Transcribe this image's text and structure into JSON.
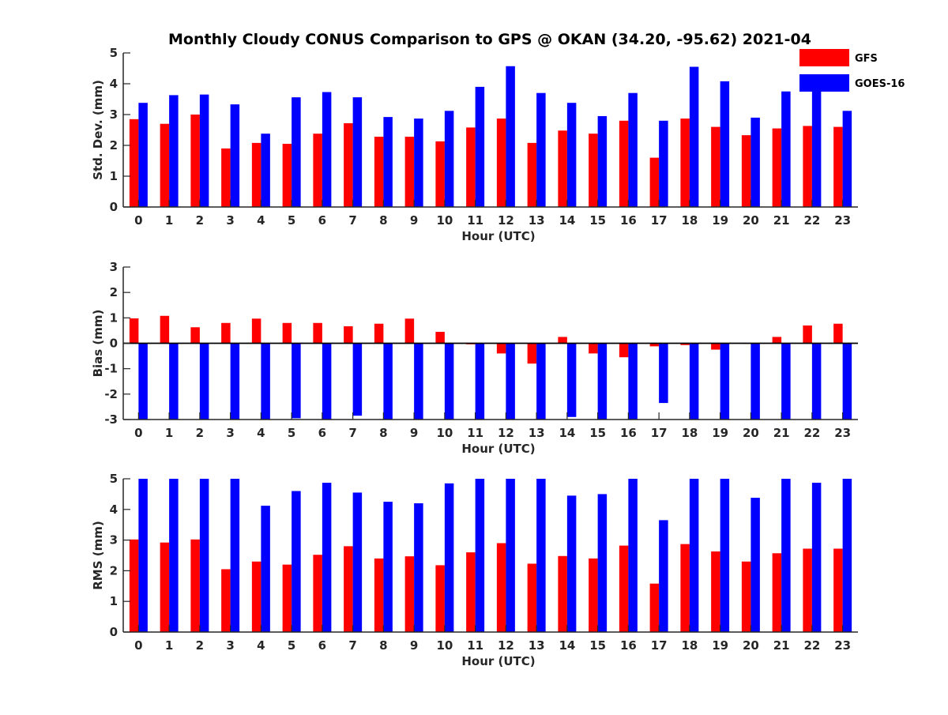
{
  "colors": {
    "gfs": "#ff0000",
    "goes": "#0000ff",
    "axis": "#262626"
  },
  "chart_data": [
    {
      "type": "bar",
      "title": "Monthly Cloudy CONUS Comparison to GPS @ OKAN (34.20, -95.62) 2021-04",
      "xlabel": "Hour (UTC)",
      "ylabel": "Std. Dev. (mm)",
      "ylim": [
        0,
        5
      ],
      "yticks": [
        "0",
        "1",
        "2",
        "3",
        "4",
        "5"
      ],
      "categories": [
        "0",
        "1",
        "2",
        "3",
        "4",
        "5",
        "6",
        "7",
        "8",
        "9",
        "10",
        "11",
        "12",
        "13",
        "14",
        "15",
        "16",
        "17",
        "18",
        "19",
        "20",
        "21",
        "22",
        "23"
      ],
      "legend": {
        "placement": "top-right"
      },
      "series": [
        {
          "name": "GFS",
          "values": [
            2.85,
            2.7,
            3.0,
            1.9,
            2.08,
            2.05,
            2.38,
            2.72,
            2.28,
            2.28,
            2.13,
            2.58,
            2.87,
            2.08,
            2.48,
            2.38,
            2.8,
            1.6,
            2.87,
            2.6,
            2.33,
            2.55,
            2.63,
            2.6
          ]
        },
        {
          "name": "GOES-16",
          "values": [
            3.38,
            3.63,
            3.65,
            3.33,
            2.38,
            3.56,
            3.73,
            3.56,
            2.92,
            2.87,
            3.12,
            3.9,
            4.57,
            3.7,
            3.38,
            2.95,
            3.7,
            2.8,
            4.55,
            4.08,
            2.9,
            3.75,
            3.8,
            3.12
          ]
        }
      ]
    },
    {
      "type": "bar",
      "xlabel": "Hour (UTC)",
      "ylabel": "Bias (mm)",
      "ylim": [
        -3,
        3
      ],
      "yticks": [
        "-3",
        "-2",
        "-1",
        "0",
        "1",
        "2",
        "3"
      ],
      "categories": [
        "0",
        "1",
        "2",
        "3",
        "4",
        "5",
        "6",
        "7",
        "8",
        "9",
        "10",
        "11",
        "12",
        "13",
        "14",
        "15",
        "16",
        "17",
        "18",
        "19",
        "20",
        "21",
        "22",
        "23"
      ],
      "series": [
        {
          "name": "GFS",
          "values": [
            0.98,
            1.08,
            0.63,
            0.8,
            0.97,
            0.8,
            0.8,
            0.67,
            0.77,
            0.97,
            0.45,
            -0.04,
            -0.4,
            -0.8,
            0.25,
            -0.4,
            -0.55,
            -0.12,
            -0.07,
            -0.25,
            0.0,
            0.25,
            0.7,
            0.77
          ]
        },
        {
          "name": "GOES-16",
          "values": [
            -3.0,
            -3.0,
            -3.0,
            -3.0,
            -3.0,
            -2.95,
            -3.0,
            -2.85,
            -3.0,
            -3.0,
            -3.0,
            -3.0,
            -3.0,
            -3.0,
            -2.9,
            -3.0,
            -3.0,
            -2.35,
            -3.0,
            -3.0,
            -3.0,
            -3.0,
            -3.0,
            -3.0
          ]
        }
      ]
    },
    {
      "type": "bar",
      "xlabel": "Hour (UTC)",
      "ylabel": "RMS (mm)",
      "ylim": [
        0,
        5
      ],
      "yticks": [
        "0",
        "1",
        "2",
        "3",
        "4",
        "5"
      ],
      "categories": [
        "0",
        "1",
        "2",
        "3",
        "4",
        "5",
        "6",
        "7",
        "8",
        "9",
        "10",
        "11",
        "12",
        "13",
        "14",
        "15",
        "16",
        "17",
        "18",
        "19",
        "20",
        "21",
        "22",
        "23"
      ],
      "series": [
        {
          "name": "GFS",
          "values": [
            3.02,
            2.92,
            3.02,
            2.05,
            2.3,
            2.2,
            2.52,
            2.8,
            2.4,
            2.47,
            2.18,
            2.6,
            2.9,
            2.23,
            2.48,
            2.4,
            2.82,
            1.58,
            2.87,
            2.63,
            2.3,
            2.57,
            2.72,
            2.72
          ]
        },
        {
          "name": "GOES-16",
          "values": [
            5.0,
            5.0,
            5.0,
            5.0,
            4.12,
            4.6,
            4.87,
            4.55,
            4.25,
            4.2,
            4.85,
            5.0,
            5.0,
            5.0,
            4.45,
            4.5,
            5.0,
            3.65,
            5.0,
            5.0,
            4.38,
            5.0,
            4.87,
            5.0
          ]
        }
      ]
    }
  ]
}
